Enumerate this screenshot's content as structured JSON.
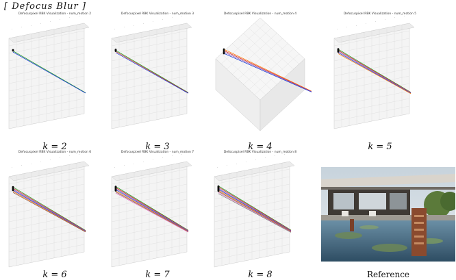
{
  "header": "[ Defocus Blur ]",
  "panels": [
    {
      "title": "Defocuspixel RBK Visualization - num_motion 2",
      "k": "k = 2",
      "lines": [
        "#2ca02c",
        "#1f3fd6"
      ],
      "view": "a"
    },
    {
      "title": "Defocuspixel RBK Visualization - num_motion 3",
      "k": "k = 3",
      "lines": [
        "#2ca02c",
        "#d62728",
        "#1f3fd6"
      ],
      "view": "a"
    },
    {
      "title": "Defocuspixel RBK Visualization - num_motion 4",
      "k": "k = 4",
      "lines": [
        "#ff7f0e",
        "#d62728",
        "#9467bd",
        "#1f3fd6"
      ],
      "view": "b"
    },
    {
      "title": "Defocuspixel RBK Visualization - num_motion 5",
      "k": "k = 5",
      "lines": [
        "#2ca02c",
        "#d62728",
        "#9467bd",
        "#1f3fd6",
        "#ff7f0e"
      ],
      "view": "a"
    },
    {
      "title": "Defocuspixel RBK Visualization - num_motion 6",
      "k": "k = 6",
      "lines": [
        "#2ca02c",
        "#d62728",
        "#9467bd",
        "#1f3fd6",
        "#ff7f0e",
        "#8c564b"
      ],
      "view": "a"
    },
    {
      "title": "Defocuspixel RBK Visualization - num_motion 7",
      "k": "k = 7",
      "lines": [
        "#2ca02c",
        "#d62728",
        "#9467bd",
        "#1f3fd6",
        "#ff7f0e",
        "#8c564b",
        "#e377c2"
      ],
      "view": "a"
    },
    {
      "title": "Defocuspixel RBK Visualization - num_motion 8",
      "k": "k = 8",
      "lines": [
        "#2ca02c",
        "#d62728",
        "#9467bd",
        "#1f3fd6",
        "#ff7f0e",
        "#8c564b",
        "#e377c2",
        "#7f7f7f"
      ],
      "view": "a"
    }
  ],
  "reference_caption": "Reference"
}
